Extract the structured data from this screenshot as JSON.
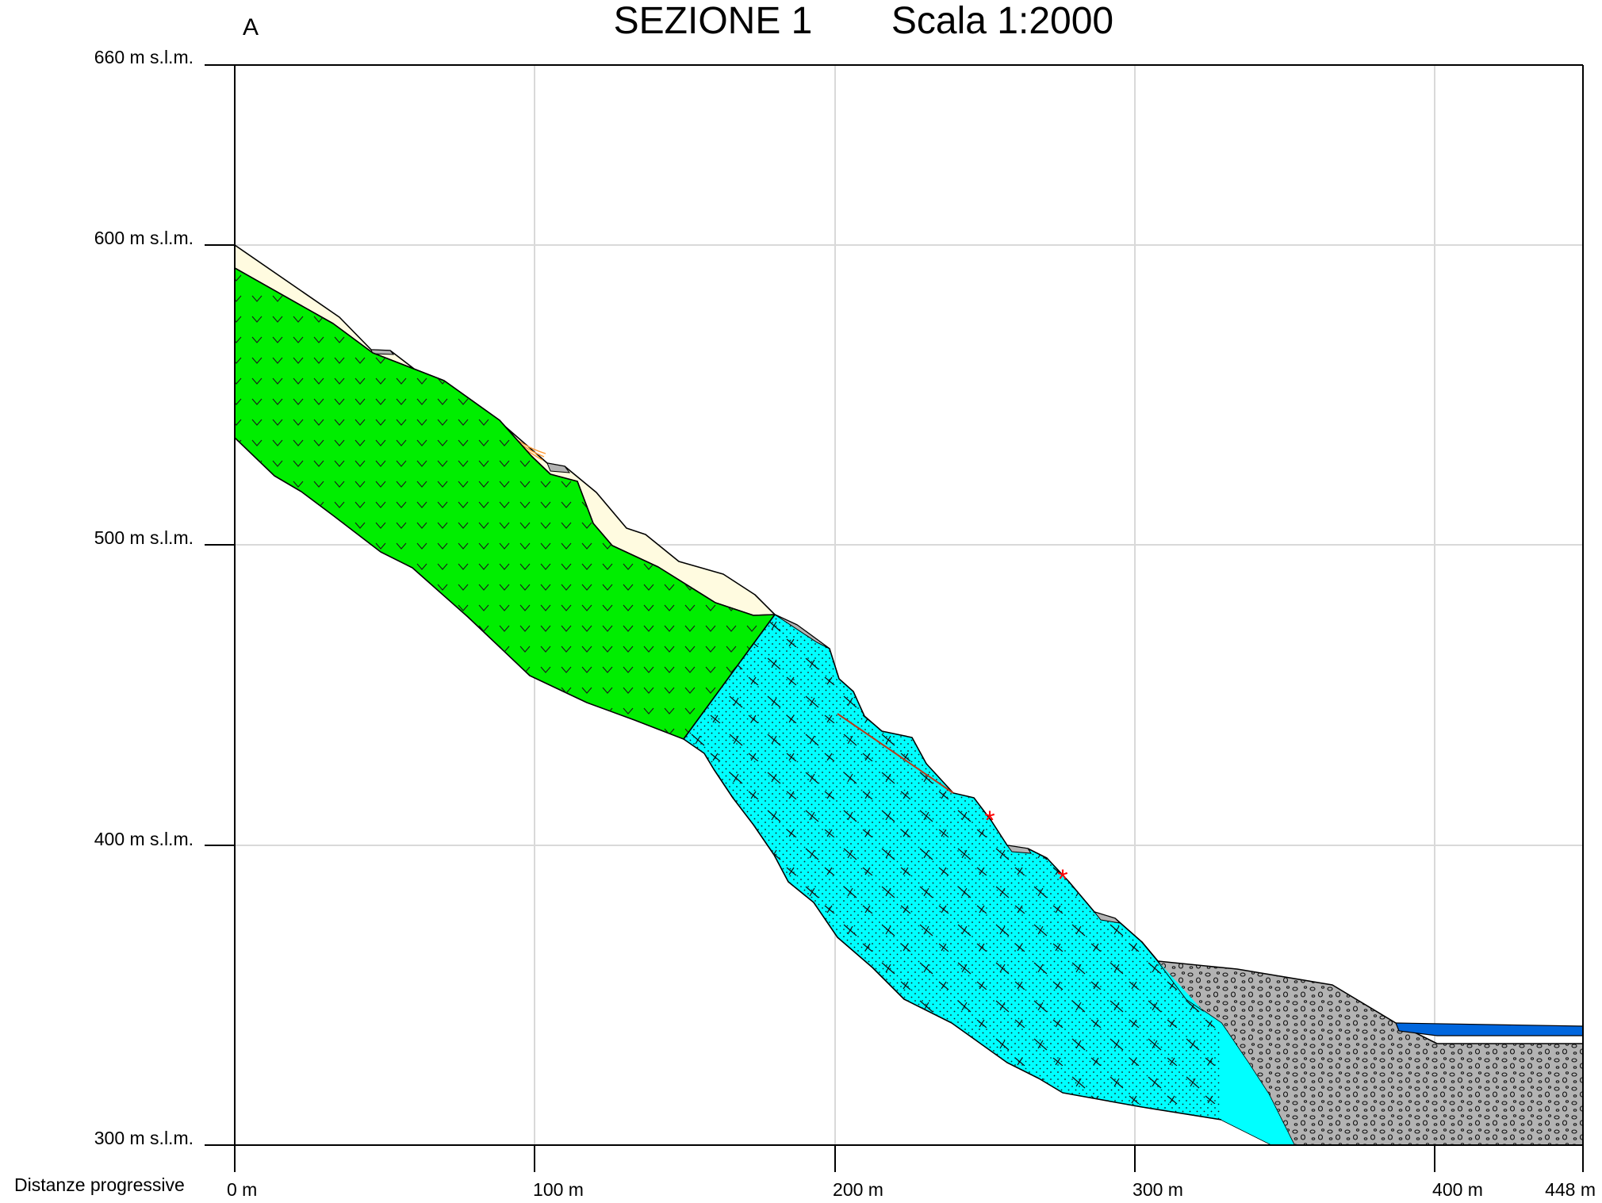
{
  "header": {
    "point_label": "A",
    "section_title": "SEZIONE 1",
    "scale_label": "Scala 1:2000"
  },
  "y_axis": {
    "labels": [
      "660 m s.l.m.",
      "600 m s.l.m.",
      "500 m s.l.m.",
      "400 m s.l.m.",
      "300 m s.l.m."
    ]
  },
  "x_axis": {
    "title": "Distanze progressive",
    "labels": [
      "0 m",
      "100 m",
      "200 m",
      "300 m",
      "400 m",
      "448 m"
    ]
  },
  "legend_units": {
    "green_unit": "#00ee00",
    "cyan_unit": "#00ffff",
    "gray_deposit": "#b3b3b3",
    "topsoil_cover": "#fffbe0",
    "water_body": "#0066dd",
    "marker_color": "#ff0000"
  },
  "markers": [
    {
      "name": "red-asterisk-1",
      "symbol": "*"
    },
    {
      "name": "red-asterisk-2",
      "symbol": "*"
    }
  ]
}
